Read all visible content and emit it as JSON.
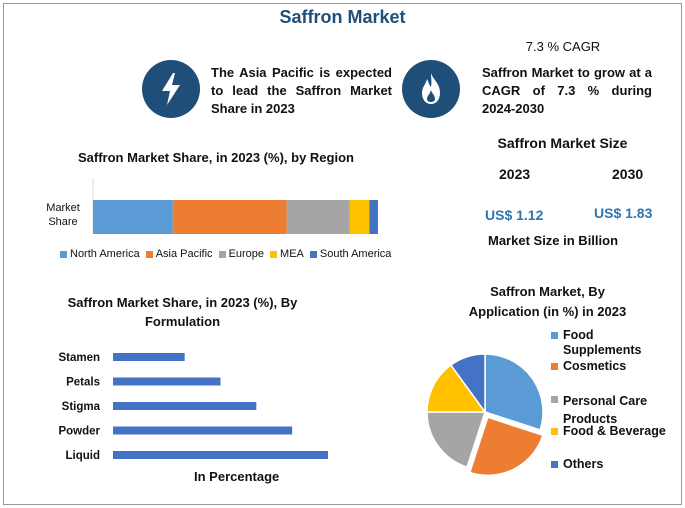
{
  "header": {
    "title": "Saffron Market"
  },
  "highlights": {
    "left_text": "The Asia Pacific is expected to lead the Saffron Market Share in 2023",
    "cagr_label": "7.3 % CAGR",
    "right_text": "Saffron Market to grow at a CAGR of 7.3 % during 2024-2030",
    "left_icon": "lightning-icon",
    "right_icon": "flame-icon"
  },
  "market_size": {
    "title": "Saffron Market Size",
    "year_a": "2023",
    "year_b": "2030",
    "value_a": "US$ 1.12",
    "value_b": "US$ 1.83",
    "caption": "Market Size in Billion"
  },
  "colors": {
    "accent": "#1f4e79",
    "blue": "#5b9bd5",
    "orange": "#ed7d31",
    "gray": "#a5a5a5",
    "yellow": "#ffc000",
    "darkblue": "#4472c4"
  },
  "chart_data": [
    {
      "type": "bar",
      "orientation": "horizontal-stacked",
      "title": "Saffron Market Share, in 2023 (%), by Region",
      "categories": [
        "Market Share"
      ],
      "series": [
        {
          "name": "North America",
          "values": [
            28
          ],
          "color": "#5b9bd5"
        },
        {
          "name": "Asia Pacific",
          "values": [
            40
          ],
          "color": "#ed7d31"
        },
        {
          "name": "Europe",
          "values": [
            22
          ],
          "color": "#a5a5a5"
        },
        {
          "name": "MEA",
          "values": [
            7
          ],
          "color": "#ffc000"
        },
        {
          "name": "South America",
          "values": [
            3
          ],
          "color": "#4472c4"
        }
      ],
      "xlim": [
        0,
        100
      ],
      "legend": "bottom"
    },
    {
      "type": "bar",
      "orientation": "horizontal",
      "title": "Saffron Market Share, in 2023 (%), By Formulation",
      "categories": [
        "Stamen",
        "Petals",
        "Stigma",
        "Powder",
        "Liquid"
      ],
      "values": [
        10,
        15,
        20,
        25,
        30
      ],
      "xlabel": "In Percentage",
      "color": "#4472c4",
      "xlim": [
        0,
        30
      ]
    },
    {
      "type": "pie",
      "title": "Saffron Market, By Application (in %) in 2023",
      "labels": [
        "Food Supplements",
        "Cosmetics",
        "Personal Care Products",
        "Food & Beverage",
        "Others"
      ],
      "values": [
        30,
        25,
        20,
        15,
        10
      ],
      "colors": [
        "#5b9bd5",
        "#ed7d31",
        "#a5a5a5",
        "#ffc000",
        "#4472c4"
      ],
      "legend": "right"
    }
  ]
}
